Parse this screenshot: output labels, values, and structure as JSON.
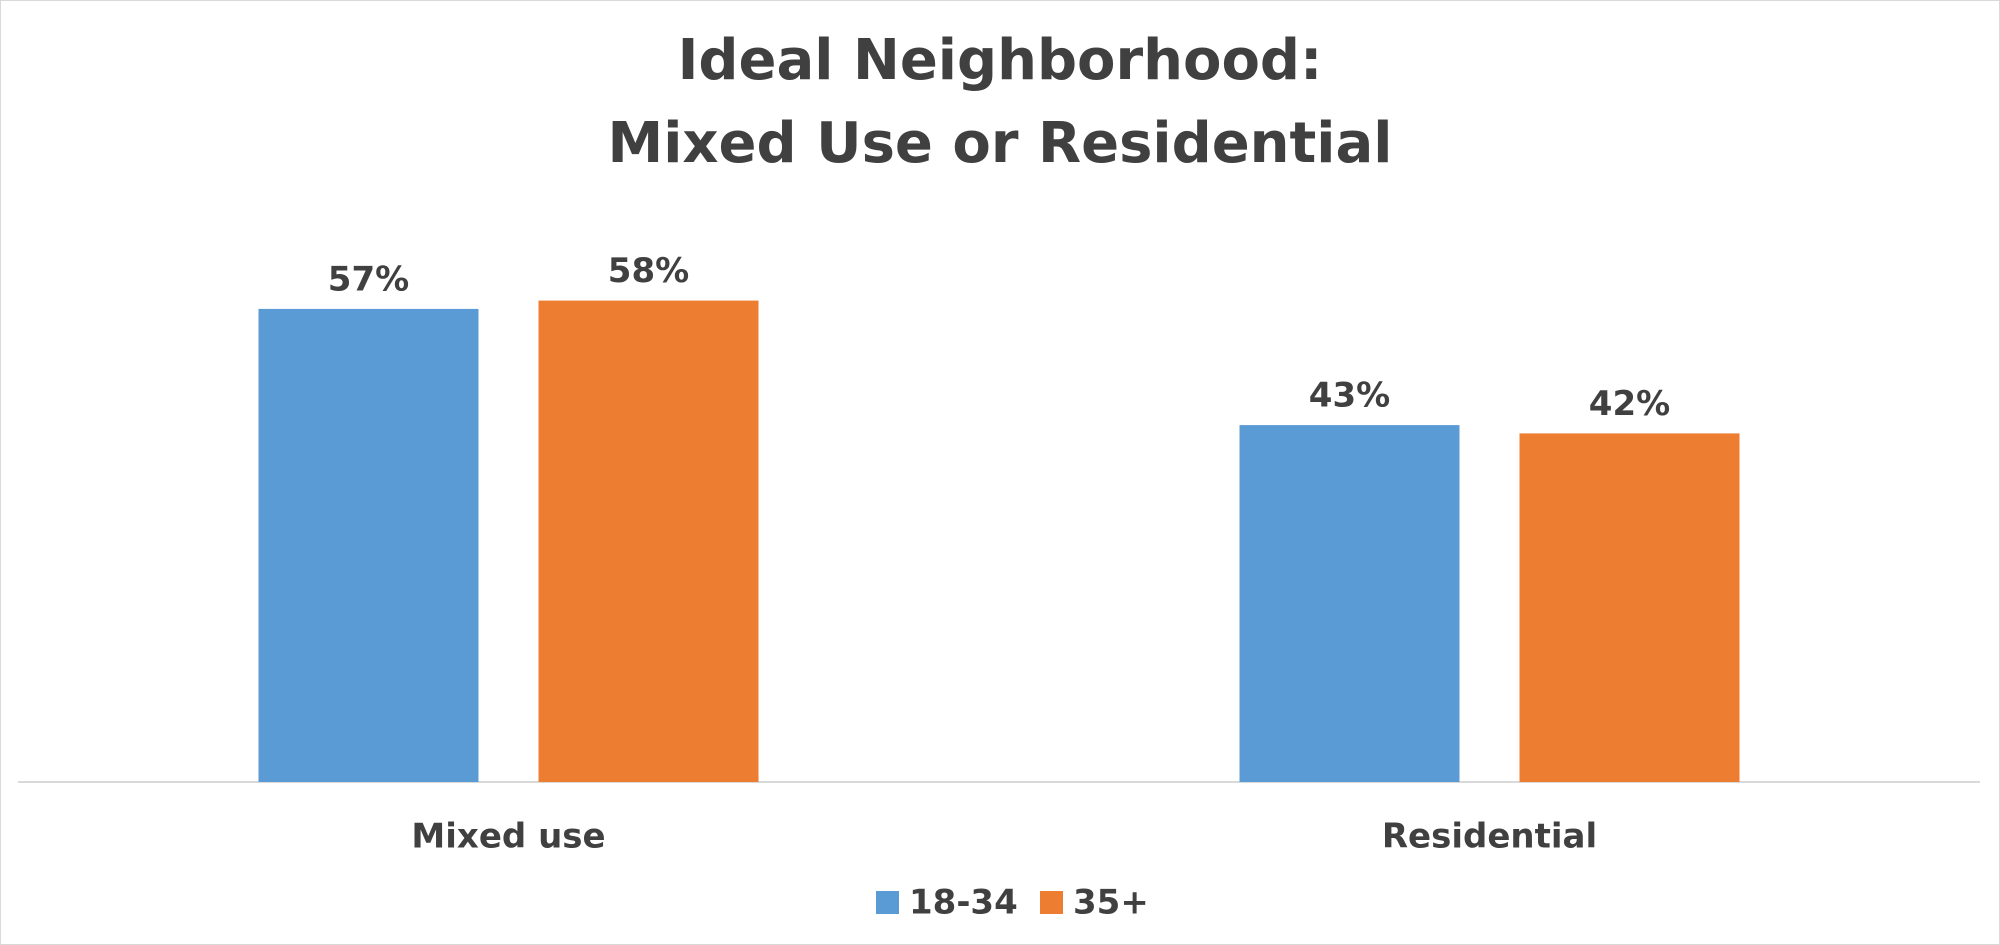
{
  "chart_data": {
    "type": "bar",
    "title": [
      "Ideal Neighborhood:",
      "Mixed Use or Residential"
    ],
    "categories": [
      "Mixed use",
      "Residential"
    ],
    "series": [
      {
        "name": "18-34",
        "color": "#5b9bd5",
        "values": [
          57,
          43
        ],
        "value_labels": [
          "57%",
          "43%"
        ]
      },
      {
        "name": "35+",
        "color": "#ed7d31",
        "values": [
          58,
          42
        ],
        "value_labels": [
          "58%",
          "42%"
        ]
      }
    ],
    "legend": "bottom"
  }
}
